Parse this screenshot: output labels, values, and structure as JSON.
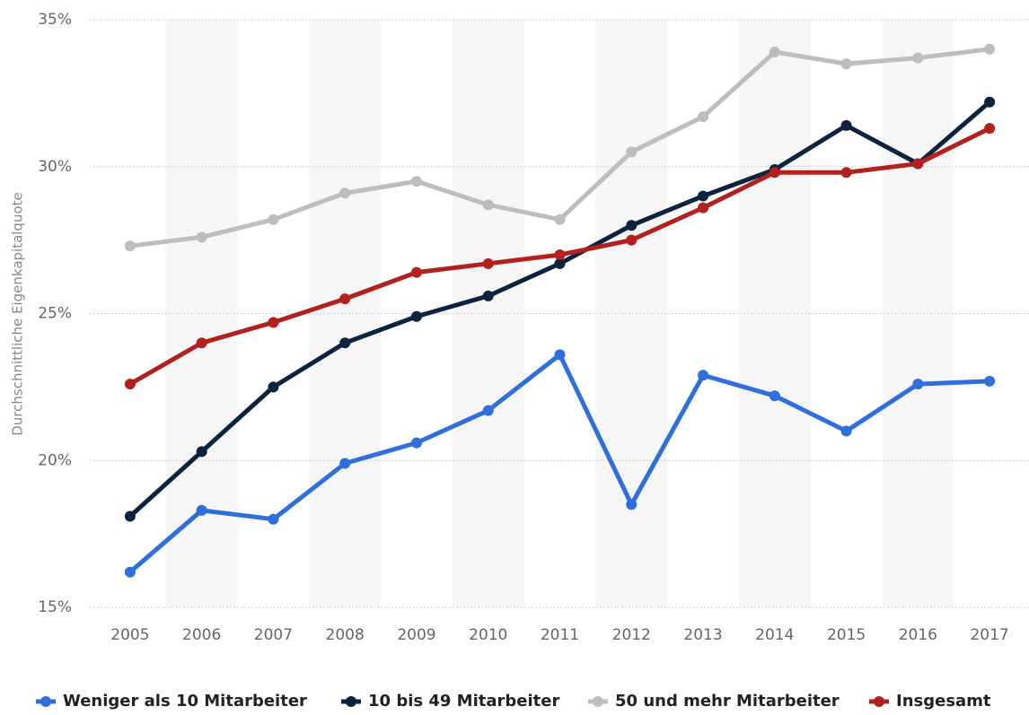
{
  "chart_data": {
    "type": "line",
    "y_label": "Durchschnittliche Eigenkapitalquote",
    "categories": [
      "2005",
      "2006",
      "2007",
      "2008",
      "2009",
      "2010",
      "2011",
      "2012",
      "2013",
      "2014",
      "2015",
      "2016",
      "2017"
    ],
    "series": [
      {
        "name": "Weniger als 10 Mitarbeiter",
        "color": "#2f6fdc",
        "values": [
          16.2,
          18.3,
          18.0,
          19.9,
          20.6,
          21.7,
          23.6,
          18.5,
          22.9,
          22.2,
          21.0,
          22.6,
          22.7
        ]
      },
      {
        "name": "10 bis 49 Mitarbeiter",
        "color": "#0c2340",
        "values": [
          18.1,
          20.3,
          22.5,
          24.0,
          24.9,
          25.6,
          26.7,
          28.0,
          29.0,
          29.9,
          31.4,
          30.1,
          32.2
        ]
      },
      {
        "name": "50 und mehr Mitarbeiter",
        "color": "#bdbdbd",
        "values": [
          27.3,
          27.6,
          28.2,
          29.1,
          29.5,
          28.7,
          28.2,
          30.5,
          31.7,
          33.9,
          33.5,
          33.7,
          34.0
        ]
      },
      {
        "name": "Insgesamt",
        "color": "#b3211f",
        "values": [
          22.6,
          24.0,
          24.7,
          25.5,
          26.4,
          26.7,
          27.0,
          27.5,
          28.6,
          29.8,
          29.8,
          30.1,
          31.3
        ]
      }
    ],
    "ylim": [
      15,
      35
    ],
    "yticks": [
      {
        "value": 15,
        "label": "15%"
      },
      {
        "value": 20,
        "label": "20%"
      },
      {
        "value": 25,
        "label": "25%"
      },
      {
        "value": 30,
        "label": "30%"
      },
      {
        "value": 35,
        "label": "35%"
      }
    ],
    "grid": true
  }
}
